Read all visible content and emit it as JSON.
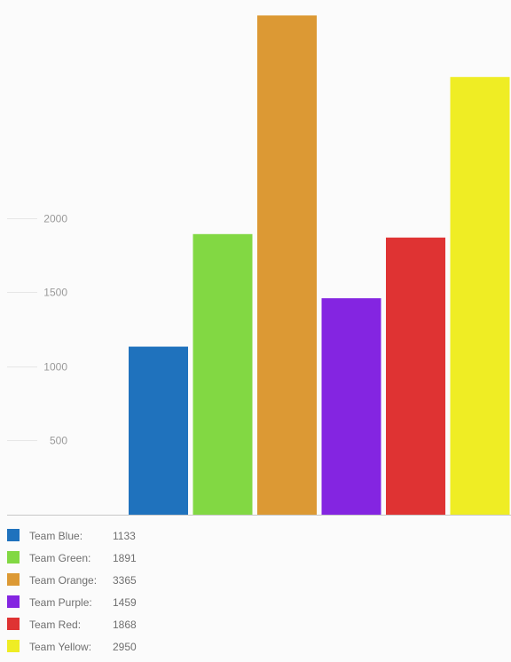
{
  "chart_data": {
    "type": "bar",
    "categories": [
      "Team Blue:",
      "Team Green:",
      "Team Orange:",
      "Team Purple:",
      "Team Red:",
      "Team Yellow:"
    ],
    "values": [
      1133,
      1891,
      3365,
      1459,
      1868,
      2950
    ],
    "colors": [
      "#1f72bd",
      "#82d843",
      "#dc9934",
      "#8425e1",
      "#df3333",
      "#efed24"
    ],
    "yticks": [
      500,
      1000,
      1500,
      2000
    ],
    "title": "",
    "xlabel": "",
    "ylabel": "",
    "ylim": [
      0,
      3365
    ],
    "grid": true,
    "legend_position": "bottom-left"
  }
}
